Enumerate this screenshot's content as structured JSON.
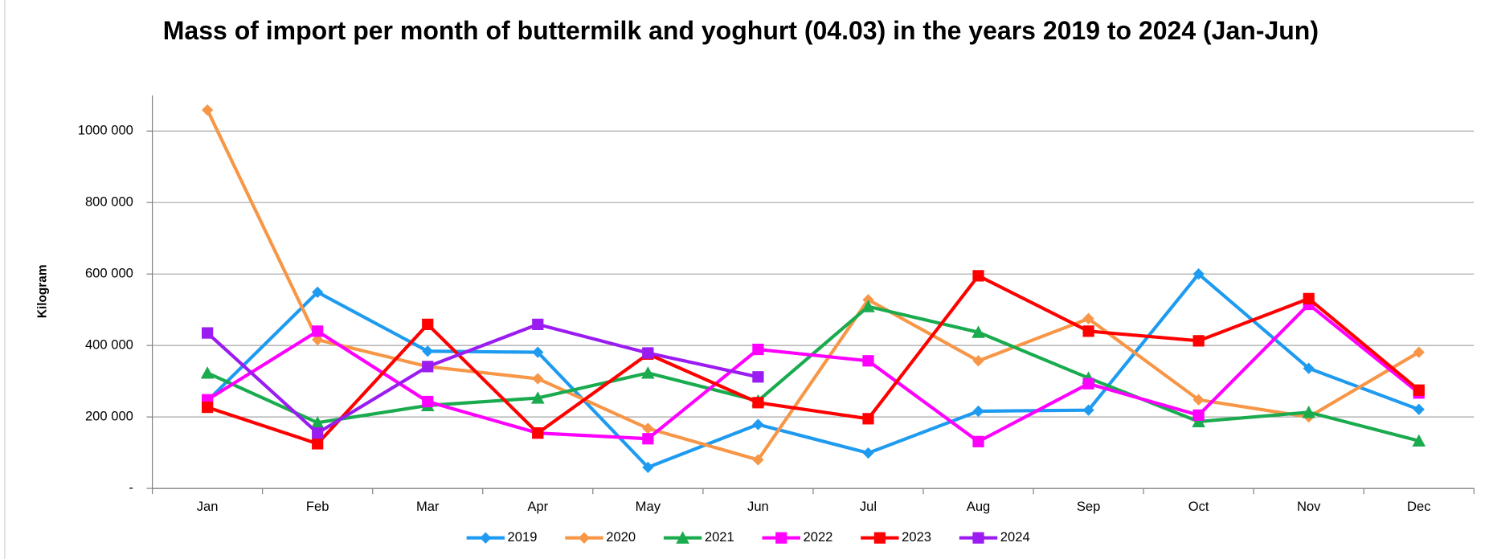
{
  "chart_data": {
    "type": "line",
    "title": "Mass of import per month of buttermilk and yoghurt (04.03) in the years 2019 to 2024 (Jan-Jun)",
    "y_label": "Kilogram",
    "categories": [
      "Jan",
      "Feb",
      "Mar",
      "Apr",
      "May",
      "Jun",
      "Jul",
      "Aug",
      "Sep",
      "Oct",
      "Nov",
      "Dec"
    ],
    "series": [
      {
        "name": "2019",
        "color": "#1e9bf0",
        "marker": "diamond",
        "values": [
          245000,
          549000,
          384000,
          381000,
          59000,
          179000,
          99000,
          216000,
          219000,
          600000,
          336000,
          221000
        ]
      },
      {
        "name": "2020",
        "color": "#f79646",
        "marker": "diamond",
        "values": [
          1059000,
          416000,
          341000,
          307000,
          168000,
          80000,
          528000,
          357000,
          475000,
          248000,
          200000,
          381000
        ]
      },
      {
        "name": "2021",
        "color": "#1aab4f",
        "marker": "triangle",
        "values": [
          323000,
          184000,
          232000,
          253000,
          323000,
          245000,
          509000,
          437000,
          309000,
          187000,
          213000,
          133000
        ]
      },
      {
        "name": "2022",
        "color": "#ff00ff",
        "marker": "square",
        "values": [
          248000,
          440000,
          243000,
          155000,
          139000,
          389000,
          357000,
          131000,
          293000,
          205000,
          515000,
          267000
        ]
      },
      {
        "name": "2023",
        "color": "#ff0000",
        "marker": "square",
        "values": [
          227000,
          125000,
          459000,
          155000,
          376000,
          240000,
          195000,
          595000,
          440000,
          413000,
          531000,
          275000
        ]
      },
      {
        "name": "2024",
        "color": "#9b1cf0",
        "marker": "square",
        "values": [
          435000,
          155000,
          341000,
          459000,
          379000,
          312000,
          null,
          null,
          null,
          null,
          null,
          null
        ]
      }
    ],
    "ylim": [
      0,
      1100000
    ],
    "yticks": [
      {
        "value": 0,
        "label": "-"
      },
      {
        "value": 200000,
        "label": "200 000"
      },
      {
        "value": 400000,
        "label": "400 000"
      },
      {
        "value": 600000,
        "label": "600 000"
      },
      {
        "value": 800000,
        "label": "800 000"
      },
      {
        "value": 1000000,
        "label": "1000 000"
      }
    ],
    "grid": true,
    "legend": "bottom"
  }
}
